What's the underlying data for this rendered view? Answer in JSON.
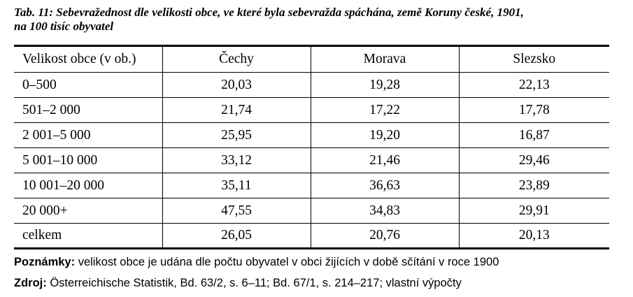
{
  "caption": {
    "line1": "Tab. 11: Sebevražednost dle velikosti obce, ve které byla sebevražda spáchána, země Koruny české, 1901,",
    "line2": "na 100 tisíc obyvatel"
  },
  "table": {
    "headers": [
      "Velikost obce (v ob.)",
      "Čechy",
      "Morava",
      "Slezsko"
    ],
    "rows": [
      {
        "label": "0–500",
        "cechy": "20,03",
        "morava": "19,28",
        "slezsko": "22,13"
      },
      {
        "label": "501–2 000",
        "cechy": "21,74",
        "morava": "17,22",
        "slezsko": "17,78"
      },
      {
        "label": "2 001–5 000",
        "cechy": "25,95",
        "morava": "19,20",
        "slezsko": "16,87"
      },
      {
        "label": "5 001–10 000",
        "cechy": "33,12",
        "morava": "21,46",
        "slezsko": "29,46"
      },
      {
        "label": "10 001–20 000",
        "cechy": "35,11",
        "morava": "36,63",
        "slezsko": "23,89"
      },
      {
        "label": "20 000+",
        "cechy": "47,55",
        "morava": "34,83",
        "slezsko": "29,91"
      }
    ],
    "total": {
      "label": "celkem",
      "cechy": "26,05",
      "morava": "20,76",
      "slezsko": "20,13"
    }
  },
  "notes": {
    "remarks_label": "Poznámky:",
    "remarks_text": " velikost obce je udána dle počtu obyvatel v obci žijících v době sčítání v roce 1900",
    "source_label": "Zdroj:",
    "source_text": " Österreichische Statistik, Bd. 63/2, s. 6–11; Bd. 67/1, s. 214–217; vlastní výpočty"
  }
}
